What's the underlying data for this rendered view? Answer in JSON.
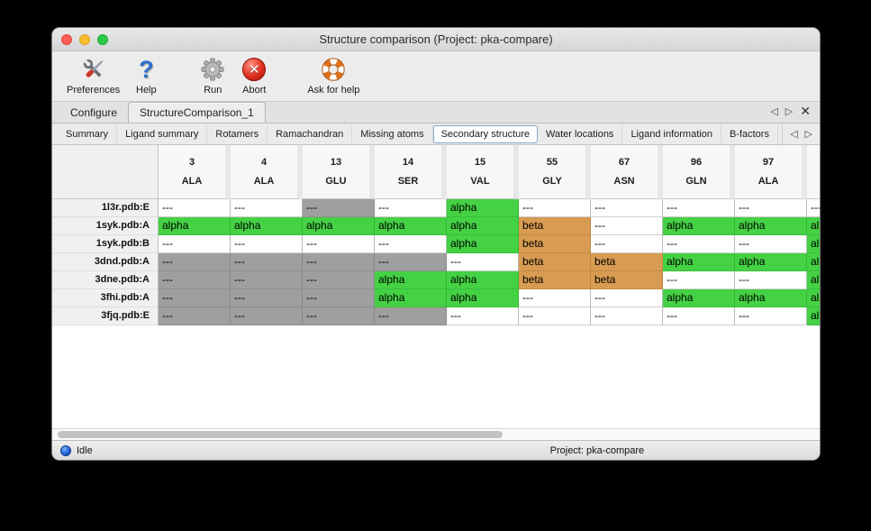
{
  "window": {
    "title": "Structure comparison (Project: pka-compare)"
  },
  "icons": {
    "prev": "◁",
    "next": "▷",
    "close": "✕"
  },
  "toolbar": {
    "items": [
      {
        "label": "Preferences",
        "icon": "tools-icon"
      },
      {
        "label": "Help",
        "icon": "question-icon"
      },
      {
        "label": "Run",
        "icon": "gear-icon"
      },
      {
        "label": "Abort",
        "icon": "abort-icon"
      },
      {
        "label": "Ask for help",
        "icon": "lifebuoy-icon"
      }
    ]
  },
  "main_tabs": {
    "tabs": [
      {
        "label": "Configure"
      },
      {
        "label": "StructureComparison_1"
      }
    ],
    "active_index": 1
  },
  "sub_tabs": {
    "tabs": [
      {
        "label": "Summary"
      },
      {
        "label": "Ligand summary"
      },
      {
        "label": "Rotamers"
      },
      {
        "label": "Ramachandran"
      },
      {
        "label": "Missing atoms"
      },
      {
        "label": "Secondary structure"
      },
      {
        "label": "Water locations"
      },
      {
        "label": "Ligand information"
      },
      {
        "label": "B-factors"
      }
    ],
    "active_index": 5
  },
  "table": {
    "columns": [
      {
        "number": "3",
        "residue": "ALA"
      },
      {
        "number": "4",
        "residue": "ALA"
      },
      {
        "number": "13",
        "residue": "GLU"
      },
      {
        "number": "14",
        "residue": "SER"
      },
      {
        "number": "15",
        "residue": "VAL"
      },
      {
        "number": "55",
        "residue": "GLY"
      },
      {
        "number": "67",
        "residue": "ASN"
      },
      {
        "number": "96",
        "residue": "GLN"
      },
      {
        "number": "97",
        "residue": "ALA"
      },
      {
        "number": "",
        "residue": ""
      }
    ],
    "rows": [
      {
        "label": "1l3r.pdb:E",
        "cells": [
          {
            "text": "---",
            "state": "blank"
          },
          {
            "text": "---",
            "state": "blank"
          },
          {
            "text": "---",
            "state": "gap"
          },
          {
            "text": "---",
            "state": "blank"
          },
          {
            "text": "alpha",
            "state": "alpha"
          },
          {
            "text": "---",
            "state": "blank"
          },
          {
            "text": "---",
            "state": "blank"
          },
          {
            "text": "---",
            "state": "blank"
          },
          {
            "text": "---",
            "state": "blank"
          },
          {
            "text": "---",
            "state": "blank"
          }
        ]
      },
      {
        "label": "1syk.pdb:A",
        "cells": [
          {
            "text": "alpha",
            "state": "alpha"
          },
          {
            "text": "alpha",
            "state": "alpha"
          },
          {
            "text": "alpha",
            "state": "alpha"
          },
          {
            "text": "alpha",
            "state": "alpha"
          },
          {
            "text": "alpha",
            "state": "alpha"
          },
          {
            "text": "beta",
            "state": "beta"
          },
          {
            "text": "---",
            "state": "blank"
          },
          {
            "text": "alpha",
            "state": "alpha"
          },
          {
            "text": "alpha",
            "state": "alpha"
          },
          {
            "text": "alpha",
            "state": "alpha"
          }
        ]
      },
      {
        "label": "1syk.pdb:B",
        "cells": [
          {
            "text": "---",
            "state": "blank"
          },
          {
            "text": "---",
            "state": "blank"
          },
          {
            "text": "---",
            "state": "blank"
          },
          {
            "text": "---",
            "state": "blank"
          },
          {
            "text": "alpha",
            "state": "alpha"
          },
          {
            "text": "beta",
            "state": "beta"
          },
          {
            "text": "---",
            "state": "blank"
          },
          {
            "text": "---",
            "state": "blank"
          },
          {
            "text": "---",
            "state": "blank"
          },
          {
            "text": "alpha",
            "state": "alpha"
          }
        ]
      },
      {
        "label": "3dnd.pdb:A",
        "cells": [
          {
            "text": "---",
            "state": "gap"
          },
          {
            "text": "---",
            "state": "gap"
          },
          {
            "text": "---",
            "state": "gap"
          },
          {
            "text": "---",
            "state": "gap"
          },
          {
            "text": "---",
            "state": "blank"
          },
          {
            "text": "beta",
            "state": "beta"
          },
          {
            "text": "beta",
            "state": "beta"
          },
          {
            "text": "alpha",
            "state": "alpha"
          },
          {
            "text": "alpha",
            "state": "alpha"
          },
          {
            "text": "alpha",
            "state": "alpha"
          }
        ]
      },
      {
        "label": "3dne.pdb:A",
        "cells": [
          {
            "text": "---",
            "state": "gap"
          },
          {
            "text": "---",
            "state": "gap"
          },
          {
            "text": "---",
            "state": "gap"
          },
          {
            "text": "alpha",
            "state": "alpha"
          },
          {
            "text": "alpha",
            "state": "alpha"
          },
          {
            "text": "beta",
            "state": "beta"
          },
          {
            "text": "beta",
            "state": "beta"
          },
          {
            "text": "---",
            "state": "blank"
          },
          {
            "text": "---",
            "state": "blank"
          },
          {
            "text": "alpha",
            "state": "alpha"
          }
        ]
      },
      {
        "label": "3fhi.pdb:A",
        "cells": [
          {
            "text": "---",
            "state": "gap"
          },
          {
            "text": "---",
            "state": "gap"
          },
          {
            "text": "---",
            "state": "gap"
          },
          {
            "text": "alpha",
            "state": "alpha"
          },
          {
            "text": "alpha",
            "state": "alpha"
          },
          {
            "text": "---",
            "state": "blank"
          },
          {
            "text": "---",
            "state": "blank"
          },
          {
            "text": "alpha",
            "state": "alpha"
          },
          {
            "text": "alpha",
            "state": "alpha"
          },
          {
            "text": "alpha",
            "state": "alpha"
          }
        ]
      },
      {
        "label": "3fjq.pdb:E",
        "cells": [
          {
            "text": "---",
            "state": "gap"
          },
          {
            "text": "---",
            "state": "gap"
          },
          {
            "text": "---",
            "state": "gap"
          },
          {
            "text": "---",
            "state": "gap"
          },
          {
            "text": "---",
            "state": "blank"
          },
          {
            "text": "---",
            "state": "blank"
          },
          {
            "text": "---",
            "state": "blank"
          },
          {
            "text": "---",
            "state": "blank"
          },
          {
            "text": "---",
            "state": "blank"
          },
          {
            "text": "alpha",
            "state": "alpha"
          }
        ]
      }
    ]
  },
  "statusbar": {
    "status_label": "Idle",
    "project_label": "Project: pka-compare"
  }
}
